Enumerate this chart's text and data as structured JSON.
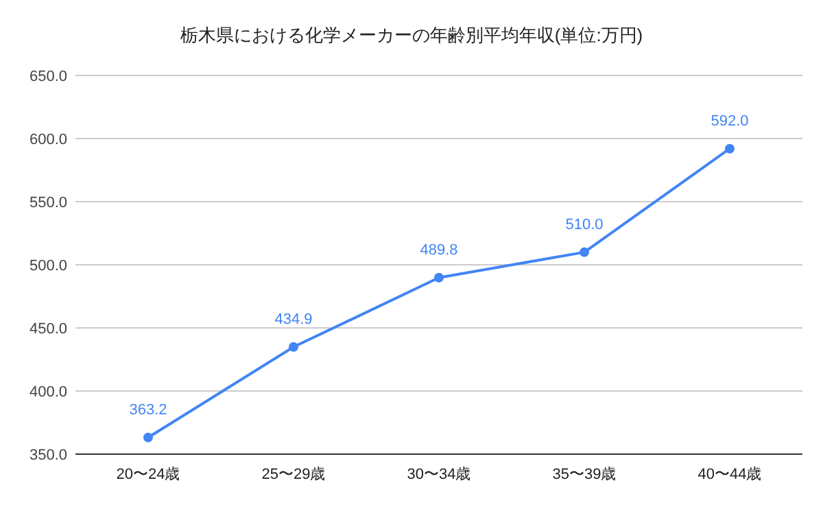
{
  "chart_data": {
    "type": "line",
    "title": "栃木県における化学メーカーの年齢別平均年収(単位:万円)",
    "categories": [
      "20〜24歳",
      "25〜29歳",
      "30〜34歳",
      "35〜39歳",
      "40〜44歳"
    ],
    "series": [
      {
        "color": "#4285f4",
        "values": [
          363.2,
          434.9,
          489.8,
          510.0,
          592.0
        ],
        "value_labels": [
          "363.2",
          "434.9",
          "489.8",
          "510.0",
          "592.0"
        ]
      }
    ],
    "ylim": [
      350,
      650
    ],
    "yticks": [
      {
        "value": 350,
        "label": "350.0"
      },
      {
        "value": 400,
        "label": "400.0"
      },
      {
        "value": 450,
        "label": "450.0"
      },
      {
        "value": 500,
        "label": "500.0"
      },
      {
        "value": 550,
        "label": "550.0"
      },
      {
        "value": 600,
        "label": "600.0"
      },
      {
        "value": 650,
        "label": "650.0"
      }
    ],
    "grid": "y",
    "marker": "circle",
    "line_style": "solid"
  }
}
